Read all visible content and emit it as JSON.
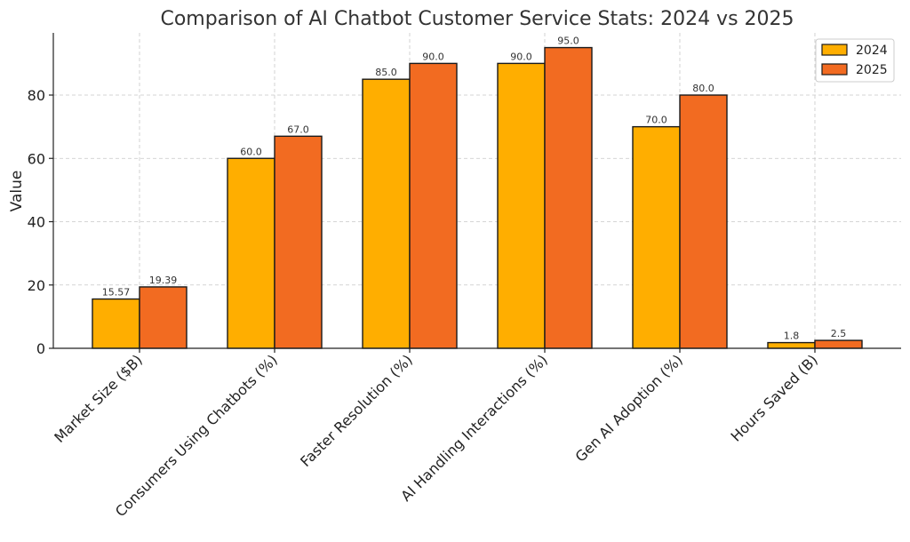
{
  "chart_data": {
    "type": "bar",
    "title": "Comparison of AI Chatbot Customer Service Stats: 2024 vs 2025",
    "xlabel": "",
    "ylabel": "Value",
    "categories": [
      "Market Size ($B)",
      "Consumers Using Chatbots (%)",
      "Faster Resolution (%)",
      "AI Handling Interactions (%)",
      "Gen AI Adoption (%)",
      "Hours Saved (B)"
    ],
    "series": [
      {
        "name": "2024",
        "color": "#ffae00",
        "values": [
          15.57,
          60.0,
          85.0,
          90.0,
          70.0,
          1.8
        ],
        "labels": [
          "15.57",
          "60.0",
          "85.0",
          "90.0",
          "70.0",
          "1.8"
        ]
      },
      {
        "name": "2025",
        "color": "#f26b21",
        "values": [
          19.39,
          67.0,
          90.0,
          95.0,
          80.0,
          2.5
        ],
        "labels": [
          "19.39",
          "67.0",
          "90.0",
          "95.0",
          "80.0",
          "2.5"
        ]
      }
    ],
    "ylim": [
      0,
      100
    ],
    "yticks": [
      0,
      20,
      40,
      60,
      80
    ],
    "grid": true,
    "legend_position": "top-right"
  }
}
